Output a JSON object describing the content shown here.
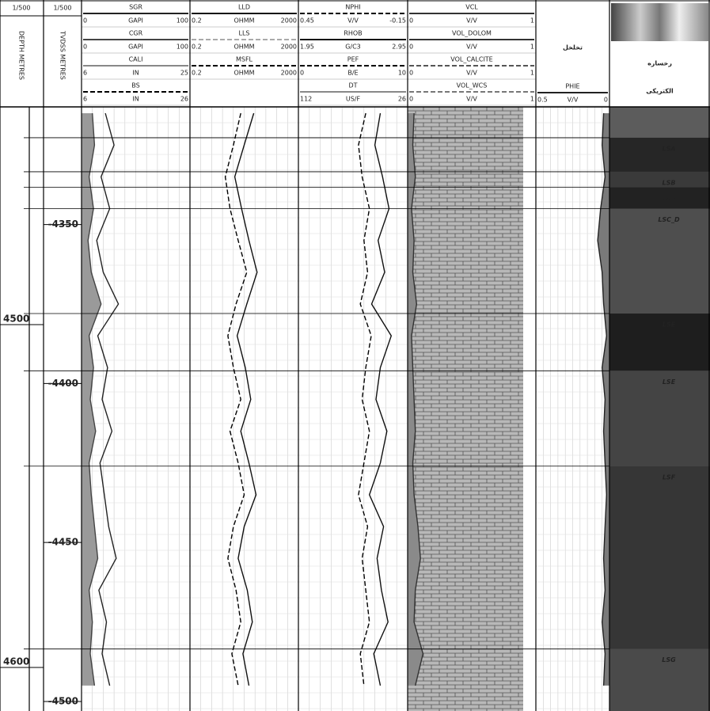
{
  "chart_data": {
    "type": "well-log",
    "depth_scale": [
      "1/500",
      "1/500"
    ],
    "md_axis_label": "DEPTH METRES",
    "tvd_axis_label": "TVDSS METRES",
    "mdlim": [
      4436.5,
      4612.7
    ],
    "mdticks": [
      4500,
      4600
    ],
    "ylim": [
      -4313,
      -4503
    ],
    "yticks": [
      -4350,
      -4400,
      -4450,
      -4500
    ],
    "depth": [
      -4315,
      -4325,
      -4335,
      -4345,
      -4355,
      -4365,
      -4375,
      -4385,
      -4395,
      -4405,
      -4415,
      -4425,
      -4435,
      -4445,
      -4455,
      -4465,
      -4475,
      -4485,
      -4495
    ],
    "tracks": [
      {
        "curves": [
          {
            "name": "SGR",
            "unit": "GAPI",
            "scale": [
              0,
              100
            ],
            "color": "#222222",
            "values": [
              22,
              30,
              18,
              26,
              14,
              20,
              34,
              15,
              24,
              19,
              28,
              17,
              21,
              25,
              32,
              16,
              23,
              19,
              26
            ]
          },
          {
            "name": "CGR",
            "unit": "GAPI",
            "scale": [
              0,
              100
            ],
            "color": "#444444",
            "fill": "#9a9a9a",
            "fill_side": "left",
            "values": [
              10,
              12,
              7,
              11,
              6,
              9,
              18,
              7,
              11,
              8,
              13,
              7,
              9,
              12,
              15,
              7,
              10,
              8,
              12
            ]
          },
          {
            "name": "CALI",
            "unit": "IN",
            "scale": [
              6,
              25
            ],
            "color": "#888888"
          },
          {
            "name": "BS",
            "unit": "IN",
            "scale": [
              6,
              26
            ],
            "color": "#000000",
            "dash": true
          }
        ]
      },
      {
        "curves": [
          {
            "name": "LLD",
            "unit": "OHMM",
            "scale": [
              0.2,
              2000
            ],
            "log": true,
            "color": "#111111",
            "values": [
              45,
              20,
              9,
              16,
              30,
              60,
              25,
              11,
              22,
              35,
              15,
              30,
              55,
              20,
              12,
              26,
              40,
              18,
              30
            ]
          },
          {
            "name": "LLS",
            "unit": "OHMM",
            "scale": [
              0.2,
              2000
            ],
            "log": true,
            "color": "#aaaaaa",
            "dash": true
          },
          {
            "name": "MSFL",
            "unit": "OHMM",
            "scale": [
              0.2,
              2000
            ],
            "log": true,
            "color": "#000000",
            "dash": true,
            "values": [
              15,
              8,
              4,
              6,
              12,
              25,
              10,
              5,
              8,
              15,
              6,
              12,
              20,
              8,
              5,
              10,
              15,
              7,
              12
            ]
          }
        ]
      },
      {
        "curves": [
          {
            "name": "NPHI",
            "unit": "V/V",
            "scale": [
              0.45,
              -0.15
            ],
            "color": "#000000",
            "dash": true,
            "values": [
              0.08,
              0.12,
              0.1,
              0.06,
              0.09,
              0.07,
              0.11,
              0.05,
              0.08,
              0.1,
              0.06,
              0.09,
              0.12,
              0.07,
              0.1,
              0.08,
              0.06,
              0.11,
              0.09
            ]
          },
          {
            "name": "RHOB",
            "unit": "G/C3",
            "scale": [
              1.95,
              2.95
            ],
            "color": "#111111",
            "values": [
              2.7,
              2.65,
              2.72,
              2.78,
              2.68,
              2.74,
              2.62,
              2.8,
              2.7,
              2.66,
              2.76,
              2.7,
              2.6,
              2.73,
              2.67,
              2.71,
              2.77,
              2.64,
              2.7
            ]
          },
          {
            "name": "PEF",
            "unit": "B/E",
            "scale": [
              0,
              10
            ],
            "color": "#000000",
            "dash": true
          },
          {
            "name": "DT",
            "unit": "US/F",
            "scale": [
              112,
              26
            ],
            "color": "#888888"
          }
        ]
      },
      {
        "curves": [
          {
            "name": "VCL",
            "unit": "V/V",
            "scale": [
              0,
              1
            ],
            "color": "#333333",
            "fill": "#8a8a8a",
            "fill_side": "left",
            "values": [
              0.05,
              0.04,
              0.06,
              0.03,
              0.05,
              0.04,
              0.07,
              0.03,
              0.04,
              0.05,
              0.06,
              0.04,
              0.05,
              0.08,
              0.1,
              0.06,
              0.05,
              0.12,
              0.06
            ]
          },
          {
            "name": "VOL_DOLOM",
            "unit": "V/V",
            "scale": [
              0,
              1
            ],
            "color": "#333333"
          },
          {
            "name": "VOL_CALCITE",
            "unit": "V/V",
            "scale": [
              0,
              1
            ],
            "color": "#555555",
            "dash": true
          },
          {
            "name": "VOL_WCS",
            "unit": "V/V",
            "scale": [
              0,
              1
            ],
            "color": "#777777",
            "dash": true
          }
        ]
      },
      {
        "title": "تخلخل",
        "curves": [
          {
            "name": "PHIE",
            "unit": "V/V",
            "scale": [
              0.5,
              0
            ],
            "color": "#222222",
            "fill": "#7a7a7a",
            "fill_side": "right",
            "values": [
              0.04,
              0.05,
              0.03,
              0.06,
              0.08,
              0.05,
              0.04,
              0.02,
              0.05,
              0.03,
              0.04,
              0.03,
              0.02,
              0.03,
              0.04,
              0.03,
              0.05,
              0.03,
              0.04
            ]
          }
        ]
      },
      {
        "title": [
          "رخساره",
          "الکتریکی"
        ],
        "zones": [
          {
            "label": "LSA",
            "top": -4322.7,
            "bottom": -4333.4,
            "color": "#262626"
          },
          {
            "label": "LSB",
            "top": -4333.4,
            "bottom": -4338.3,
            "color": "#3a3a3a"
          },
          {
            "label": "LSB",
            "top": -4338.3,
            "bottom": -4345,
            "color": "#222222"
          },
          {
            "label": "LSC_D",
            "top": -4345,
            "bottom": -4378,
            "color": "#4e4e4e"
          },
          {
            "label": "LSE",
            "top": -4378,
            "bottom": -4396,
            "color": "#1e1e1e"
          },
          {
            "label": "LSE",
            "top": -4396,
            "bottom": -4426,
            "color": "#444444"
          },
          {
            "label": "LSF",
            "top": -4426,
            "bottom": -4483.5,
            "color": "#363636"
          },
          {
            "label": "LSG",
            "top": -4483.5,
            "bottom": -4503,
            "color": "#4a4a4a"
          }
        ]
      }
    ]
  }
}
